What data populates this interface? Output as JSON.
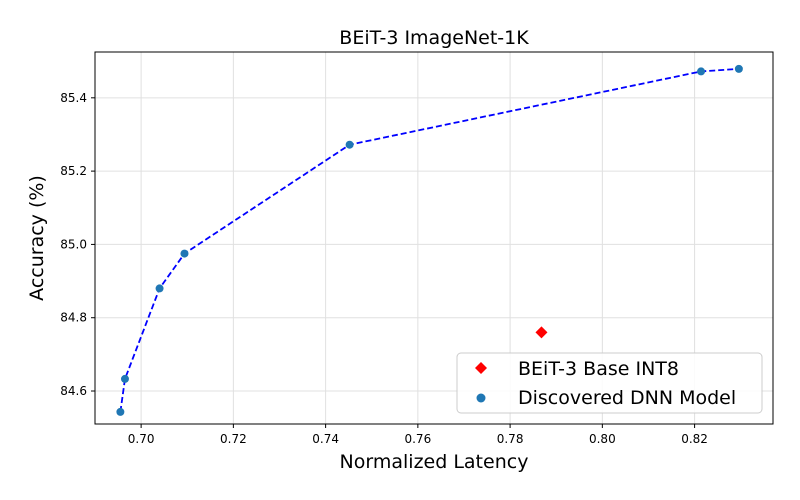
{
  "chart_data": {
    "type": "scatter",
    "title": "BEiT-3 ImageNet-1K",
    "xlabel": "Normalized Latency",
    "ylabel": "Accuracy (%)",
    "xlim": [
      0.69,
      0.837
    ],
    "ylim": [
      84.51,
      85.525
    ],
    "xticks": [
      0.7,
      0.72,
      0.74,
      0.76,
      0.78,
      0.8,
      0.82
    ],
    "xtick_labels": [
      "0.70",
      "0.72",
      "0.74",
      "0.76",
      "0.78",
      "0.80",
      "0.82"
    ],
    "yticks": [
      84.6,
      84.8,
      85.0,
      85.2,
      85.4
    ],
    "ytick_labels": [
      "84.6",
      "84.8",
      "85.0",
      "85.2",
      "85.4"
    ],
    "grid": true,
    "legend_position": "lower-right",
    "series": [
      {
        "name": "BEiT-3 Base INT8",
        "marker": "diamond",
        "color": "#ff0000",
        "x": [
          0.7868
        ],
        "y": [
          84.76
        ]
      },
      {
        "name": "Discovered DNN Model",
        "marker": "circle",
        "color": "#1f77b4",
        "connector": "dashed",
        "connector_color": "#0000ff",
        "x": [
          0.6955,
          0.6965,
          0.704,
          0.7094,
          0.7452,
          0.8214,
          0.8296
        ],
        "y": [
          84.543,
          84.633,
          84.88,
          84.975,
          85.272,
          85.472,
          85.479
        ]
      }
    ]
  }
}
